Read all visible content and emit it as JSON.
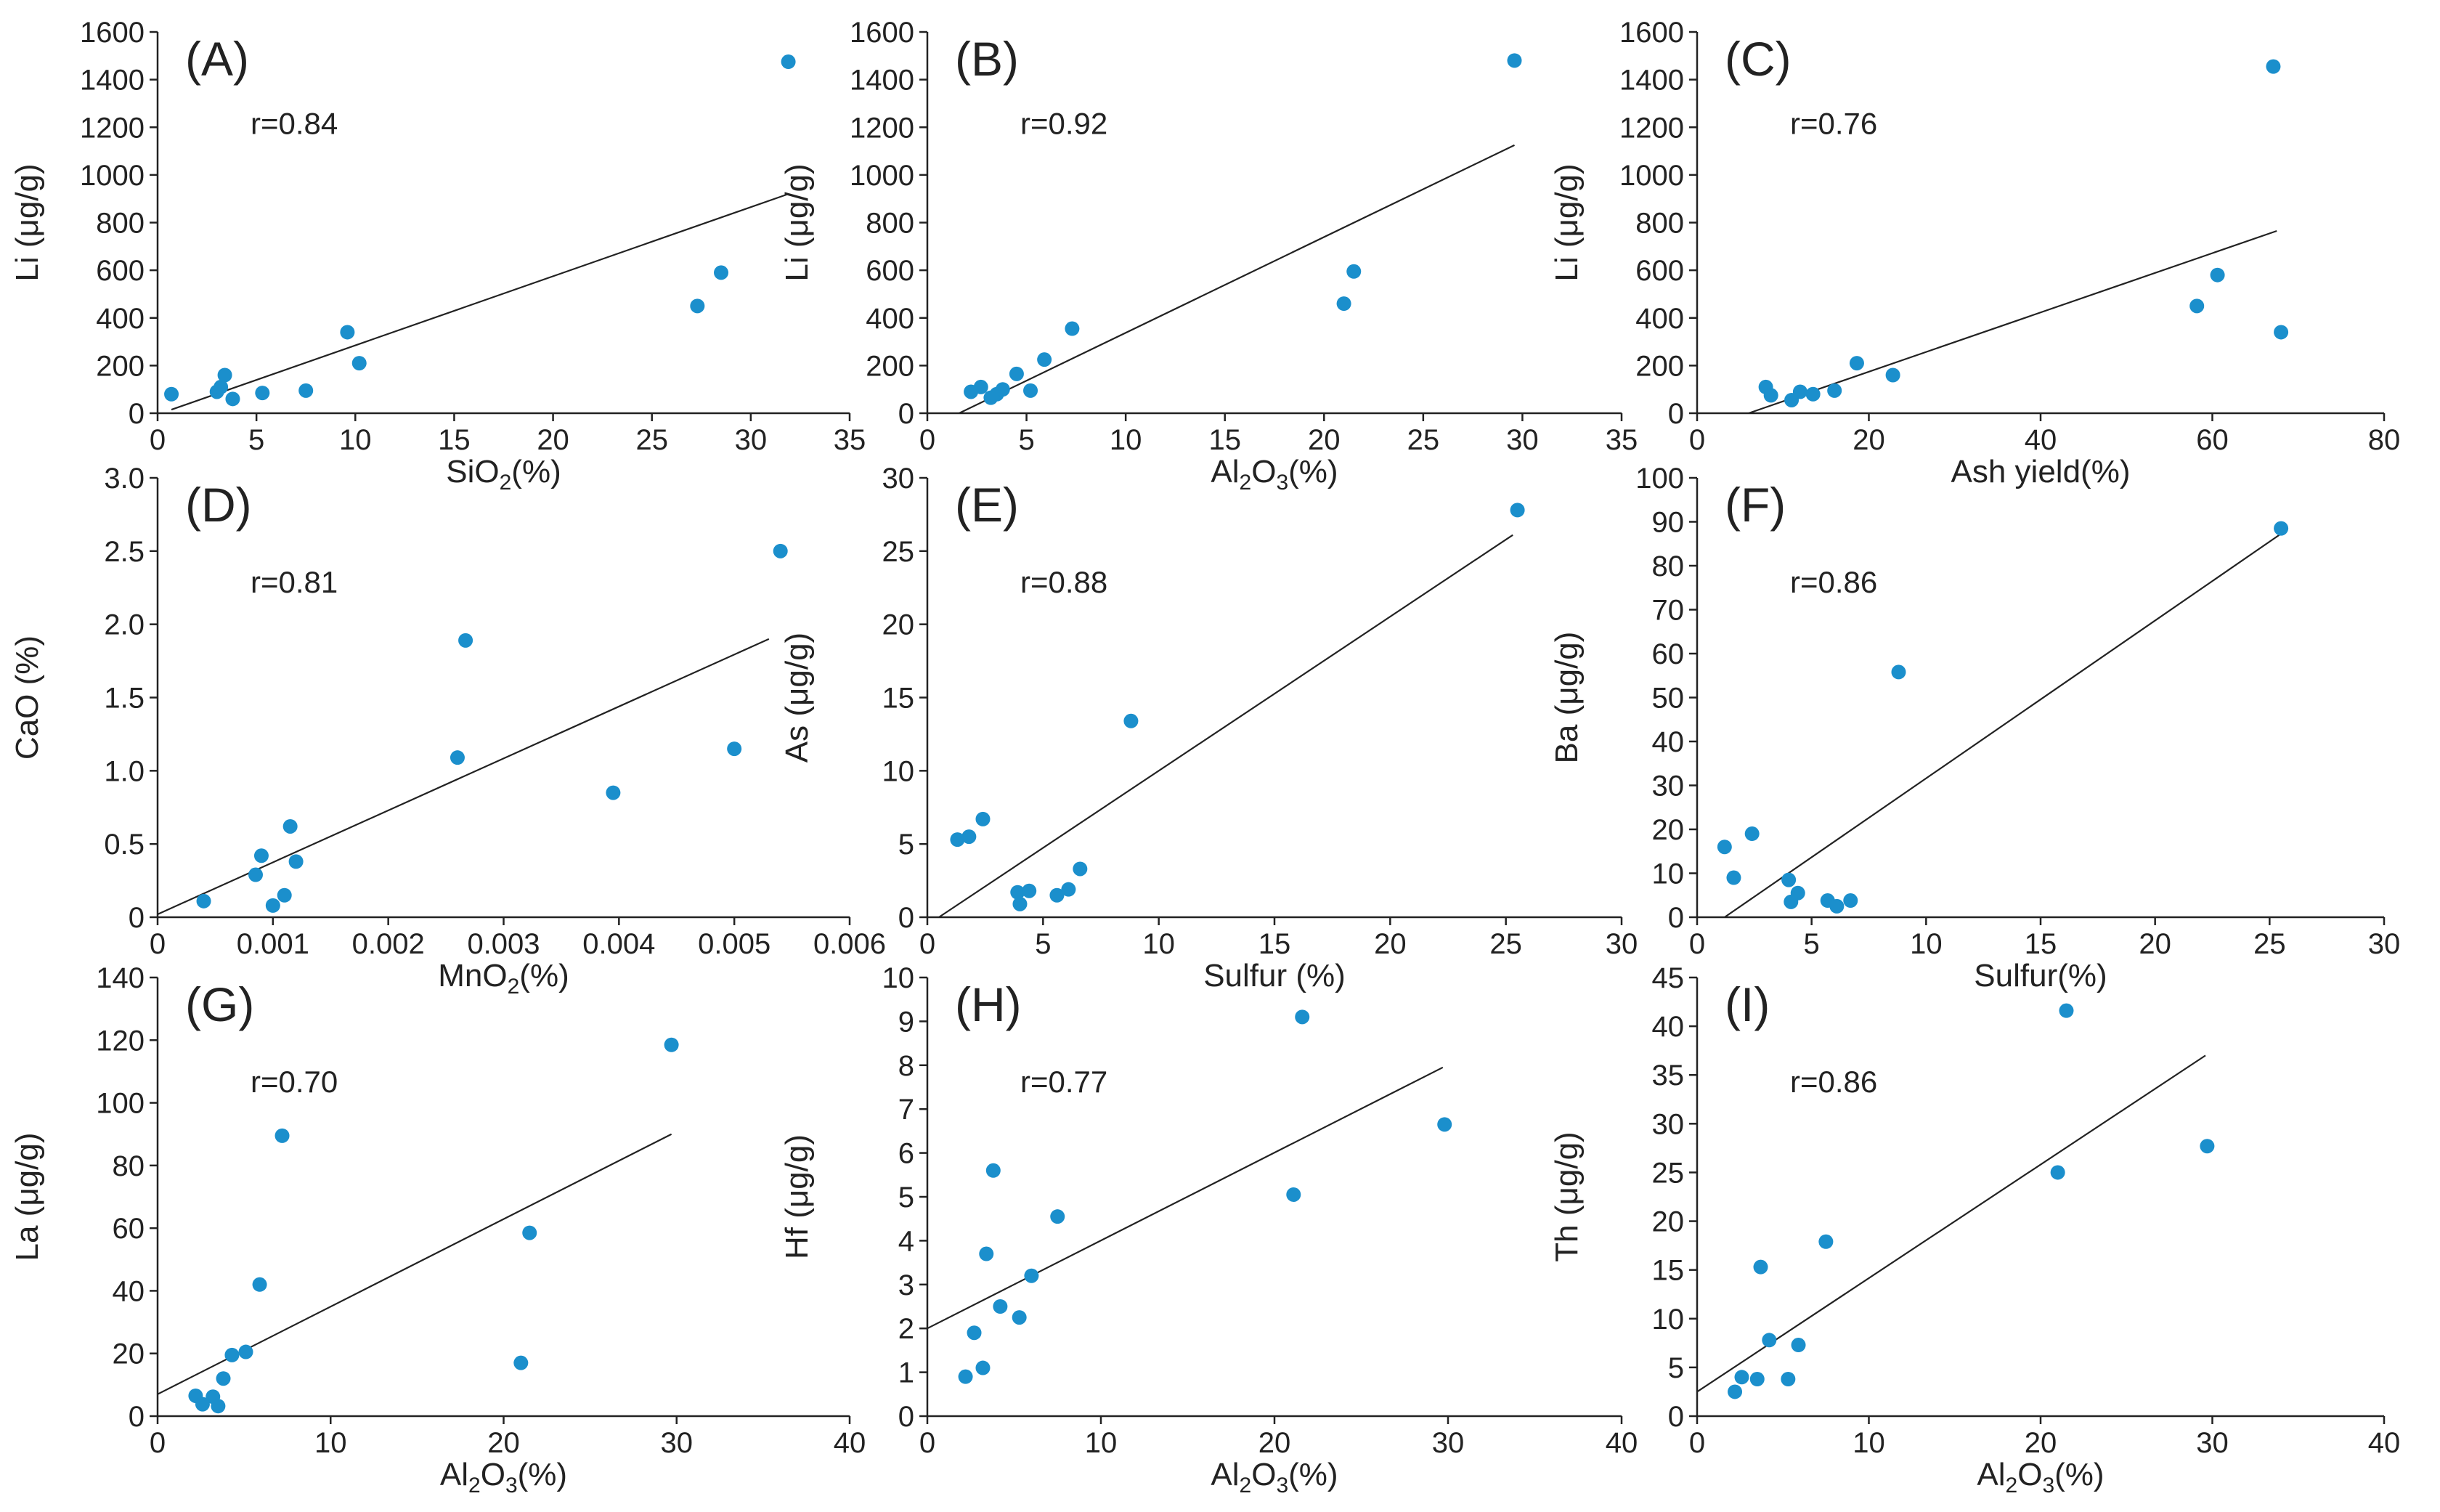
{
  "chart_data": [
    {
      "id": "A",
      "type": "scatter",
      "panel_label": "(A)",
      "r_text": "r=0.84",
      "xlabel": {
        "main": "SiO",
        "sub": "2",
        "suffix": "(%)"
      },
      "ylabel": {
        "main": "Li (μg/g)"
      },
      "xlim": [
        0,
        35
      ],
      "ylim": [
        0,
        1600
      ],
      "xticks": [
        0,
        5,
        10,
        15,
        20,
        25,
        30,
        35
      ],
      "yticks": [
        0,
        200,
        400,
        600,
        800,
        1000,
        1200,
        1400,
        1600
      ],
      "xtick_labels": [
        "0",
        "5",
        "10",
        "15",
        "20",
        "25",
        "30",
        "35"
      ],
      "ytick_labels": [
        "0",
        "200",
        "400",
        "600",
        "800",
        "1000",
        "1200",
        "1400",
        "1600"
      ],
      "points": [
        [
          0.7,
          80
        ],
        [
          3.0,
          90
        ],
        [
          3.2,
          110
        ],
        [
          3.4,
          160
        ],
        [
          3.8,
          60
        ],
        [
          5.3,
          85
        ],
        [
          7.5,
          95
        ],
        [
          9.6,
          340
        ],
        [
          10.2,
          210
        ],
        [
          27.3,
          450
        ],
        [
          28.5,
          590
        ],
        [
          31.9,
          1475
        ]
      ],
      "fit": [
        [
          0.7,
          15
        ],
        [
          31.9,
          920
        ]
      ]
    },
    {
      "id": "B",
      "type": "scatter",
      "panel_label": "(B)",
      "r_text": "r=0.92",
      "xlabel": {
        "main": "Al",
        "sub": "2",
        "main2": "O",
        "sub2": "3",
        "suffix": "(%)"
      },
      "ylabel": {
        "main": "Li (μg/g)"
      },
      "xlim": [
        0,
        35
      ],
      "ylim": [
        0,
        1600
      ],
      "xticks": [
        0,
        5,
        10,
        15,
        20,
        25,
        30,
        35
      ],
      "yticks": [
        0,
        200,
        400,
        600,
        800,
        1000,
        1200,
        1400,
        1600
      ],
      "xtick_labels": [
        "0",
        "5",
        "10",
        "15",
        "20",
        "25",
        "30",
        "35"
      ],
      "ytick_labels": [
        "0",
        "200",
        "400",
        "600",
        "800",
        "1000",
        "1200",
        "1400",
        "1600"
      ],
      "points": [
        [
          2.2,
          90
        ],
        [
          2.7,
          110
        ],
        [
          3.2,
          65
        ],
        [
          3.5,
          80
        ],
        [
          3.8,
          100
        ],
        [
          4.5,
          165
        ],
        [
          5.2,
          95
        ],
        [
          5.9,
          225
        ],
        [
          7.3,
          355
        ],
        [
          21.0,
          460
        ],
        [
          21.5,
          595
        ],
        [
          29.6,
          1480
        ]
      ],
      "fit": [
        [
          1.6,
          0
        ],
        [
          29.6,
          1125
        ]
      ]
    },
    {
      "id": "C",
      "type": "scatter",
      "panel_label": "(C)",
      "r_text": "r=0.76",
      "xlabel": {
        "main": "Ash yield",
        "suffix": "(%)"
      },
      "ylabel": {
        "main": "Li (μg/g)"
      },
      "xlim": [
        0,
        80
      ],
      "ylim": [
        0,
        1600
      ],
      "xticks": [
        0,
        20,
        40,
        60,
        80
      ],
      "yticks": [
        0,
        200,
        400,
        600,
        800,
        1000,
        1200,
        1400,
        1600
      ],
      "xtick_labels": [
        "0",
        "20",
        "40",
        "60",
        "80"
      ],
      "ytick_labels": [
        "0",
        "200",
        "400",
        "600",
        "800",
        "1000",
        "1200",
        "1400",
        "1600"
      ],
      "points": [
        [
          8.0,
          110
        ],
        [
          8.6,
          75
        ],
        [
          11.0,
          55
        ],
        [
          12.0,
          90
        ],
        [
          13.5,
          80
        ],
        [
          16.0,
          95
        ],
        [
          18.6,
          210
        ],
        [
          22.8,
          160
        ],
        [
          58.2,
          450
        ],
        [
          60.6,
          580
        ],
        [
          67.1,
          1455
        ],
        [
          68.0,
          340
        ]
      ],
      "fit": [
        [
          6.0,
          0
        ],
        [
          67.5,
          765
        ]
      ]
    },
    {
      "id": "D",
      "type": "scatter",
      "panel_label": "(D)",
      "r_text": "r=0.81",
      "xlabel": {
        "main": "MnO",
        "sub": "2",
        "suffix": "(%)"
      },
      "ylabel": {
        "main": "CaO (%)"
      },
      "xlim": [
        0,
        0.006
      ],
      "ylim": [
        0,
        3.0
      ],
      "xticks": [
        0,
        0.001,
        0.002,
        0.003,
        0.004,
        0.005,
        0.006
      ],
      "yticks": [
        0,
        0.5,
        1.0,
        1.5,
        2.0,
        2.5,
        3.0
      ],
      "xtick_labels": [
        "0",
        "0.001",
        "0.002",
        "0.003",
        "0.004",
        "0.005",
        "0.006"
      ],
      "ytick_labels": [
        "0",
        "0.5",
        "1.0",
        "1.5",
        "2.0",
        "2.5",
        "3.0"
      ],
      "points": [
        [
          0.0004,
          0.11
        ],
        [
          0.00085,
          0.29
        ],
        [
          0.0009,
          0.42
        ],
        [
          0.001,
          0.08
        ],
        [
          0.0011,
          0.15
        ],
        [
          0.00115,
          0.62
        ],
        [
          0.0012,
          0.38
        ],
        [
          0.0026,
          1.09
        ],
        [
          0.00267,
          1.89
        ],
        [
          0.00395,
          0.85
        ],
        [
          0.005,
          1.15
        ],
        [
          0.0054,
          2.5
        ]
      ],
      "fit": [
        [
          0.0,
          0.02
        ],
        [
          0.0053,
          1.9
        ]
      ]
    },
    {
      "id": "E",
      "type": "scatter",
      "panel_label": "(E)",
      "r_text": "r=0.88",
      "xlabel": {
        "main": "Sulfur",
        "suffix": " (%)"
      },
      "ylabel": {
        "main": "As (μg/g)"
      },
      "xlim": [
        0,
        30
      ],
      "ylim": [
        0,
        30
      ],
      "xticks": [
        0,
        5,
        10,
        15,
        20,
        25,
        30
      ],
      "yticks": [
        0,
        5,
        10,
        15,
        20,
        25,
        30
      ],
      "xtick_labels": [
        "0",
        "5",
        "10",
        "15",
        "20",
        "25",
        "30"
      ],
      "ytick_labels": [
        "0",
        "5",
        "10",
        "15",
        "20",
        "25",
        "30"
      ],
      "points": [
        [
          1.3,
          5.3
        ],
        [
          1.8,
          5.5
        ],
        [
          2.4,
          6.7
        ],
        [
          3.9,
          1.7
        ],
        [
          4.0,
          0.9
        ],
        [
          4.4,
          1.8
        ],
        [
          5.6,
          1.5
        ],
        [
          6.1,
          1.9
        ],
        [
          6.6,
          3.3
        ],
        [
          8.8,
          13.4
        ],
        [
          25.5,
          27.8
        ]
      ],
      "fit": [
        [
          0.5,
          0.0
        ],
        [
          25.3,
          26.1
        ]
      ]
    },
    {
      "id": "F",
      "type": "scatter",
      "panel_label": "(F)",
      "r_text": "r=0.86",
      "xlabel": {
        "main": "Sulfur",
        "suffix": "(%)"
      },
      "ylabel": {
        "main": "Ba (μg/g)"
      },
      "xlim": [
        0,
        30
      ],
      "ylim": [
        0,
        100
      ],
      "xticks": [
        0,
        5,
        10,
        15,
        20,
        25,
        30
      ],
      "yticks": [
        0,
        10,
        20,
        30,
        40,
        50,
        60,
        70,
        80,
        90,
        100
      ],
      "xtick_labels": [
        "0",
        "5",
        "10",
        "15",
        "20",
        "25",
        "30"
      ],
      "ytick_labels": [
        "0",
        "10",
        "20",
        "30",
        "40",
        "50",
        "60",
        "70",
        "80",
        "90",
        "100"
      ],
      "points": [
        [
          1.2,
          16.0
        ],
        [
          1.6,
          9.0
        ],
        [
          2.4,
          19.0
        ],
        [
          4.0,
          8.5
        ],
        [
          4.1,
          3.5
        ],
        [
          4.4,
          5.5
        ],
        [
          5.7,
          3.8
        ],
        [
          6.1,
          2.5
        ],
        [
          6.7,
          3.8
        ],
        [
          8.8,
          55.8
        ],
        [
          25.5,
          88.5
        ]
      ],
      "fit": [
        [
          1.2,
          0.0
        ],
        [
          25.7,
          88.0
        ]
      ]
    },
    {
      "id": "G",
      "type": "scatter",
      "panel_label": "(G)",
      "r_text": "r=0.70",
      "xlabel": {
        "main": "Al",
        "sub": "2",
        "main2": "O",
        "sub2": "3",
        "suffix": "(%)"
      },
      "ylabel": {
        "main": "La (μg/g)"
      },
      "xlim": [
        0,
        40
      ],
      "ylim": [
        0,
        140
      ],
      "xticks": [
        0,
        10,
        20,
        30,
        40
      ],
      "yticks": [
        0,
        20,
        40,
        60,
        80,
        100,
        120,
        140
      ],
      "xtick_labels": [
        "0",
        "10",
        "20",
        "30",
        "40"
      ],
      "ytick_labels": [
        "0",
        "20",
        "40",
        "60",
        "80",
        "100",
        "120",
        "140"
      ],
      "points": [
        [
          2.2,
          6.5
        ],
        [
          2.6,
          3.8
        ],
        [
          3.2,
          6.2
        ],
        [
          3.5,
          3.2
        ],
        [
          3.8,
          12.0
        ],
        [
          4.3,
          19.5
        ],
        [
          5.1,
          20.5
        ],
        [
          5.9,
          42.0
        ],
        [
          7.2,
          89.5
        ],
        [
          21.0,
          17.0
        ],
        [
          21.5,
          58.5
        ],
        [
          29.7,
          118.5
        ]
      ],
      "fit": [
        [
          0.0,
          7.0
        ],
        [
          29.7,
          90.0
        ]
      ]
    },
    {
      "id": "H",
      "type": "scatter",
      "panel_label": "(H)",
      "r_text": "r=0.77",
      "xlabel": {
        "main": "Al",
        "sub": "2",
        "main2": "O",
        "sub2": "3",
        "suffix": "(%)"
      },
      "ylabel": {
        "main": "Hf (μg/g)"
      },
      "xlim": [
        0,
        40
      ],
      "ylim": [
        0,
        10
      ],
      "xticks": [
        0,
        10,
        20,
        30,
        40
      ],
      "yticks": [
        0,
        1,
        2,
        3,
        4,
        5,
        6,
        7,
        8,
        9,
        10
      ],
      "xtick_labels": [
        "0",
        "10",
        "20",
        "30",
        "40"
      ],
      "ytick_labels": [
        "0",
        "1",
        "2",
        "3",
        "4",
        "5",
        "6",
        "7",
        "8",
        "9",
        "10"
      ],
      "points": [
        [
          2.2,
          0.9
        ],
        [
          2.7,
          1.9
        ],
        [
          3.2,
          1.1
        ],
        [
          3.4,
          3.7
        ],
        [
          3.8,
          5.6
        ],
        [
          4.2,
          2.5
        ],
        [
          5.3,
          2.25
        ],
        [
          6.0,
          3.2
        ],
        [
          7.5,
          4.55
        ],
        [
          21.1,
          5.05
        ],
        [
          21.6,
          9.1
        ],
        [
          29.8,
          6.65
        ]
      ],
      "fit": [
        [
          0.0,
          2.0
        ],
        [
          29.7,
          7.95
        ]
      ]
    },
    {
      "id": "I",
      "type": "scatter",
      "panel_label": "(I)",
      "r_text": "r=0.86",
      "xlabel": {
        "main": "Al",
        "sub": "2",
        "main2": "O",
        "sub2": "3",
        "suffix": "(%)"
      },
      "ylabel": {
        "main": "Th (μg/g)"
      },
      "xlim": [
        0,
        40
      ],
      "ylim": [
        0,
        45
      ],
      "xticks": [
        0,
        10,
        20,
        30,
        40
      ],
      "yticks": [
        0,
        5,
        10,
        15,
        20,
        25,
        30,
        35,
        40,
        45
      ],
      "xtick_labels": [
        "0",
        "10",
        "20",
        "30",
        "40"
      ],
      "ytick_labels": [
        "0",
        "5",
        "10",
        "15",
        "20",
        "25",
        "30",
        "35",
        "40",
        "45"
      ],
      "points": [
        [
          2.2,
          2.5
        ],
        [
          2.6,
          4.0
        ],
        [
          3.5,
          3.8
        ],
        [
          3.7,
          15.3
        ],
        [
          4.2,
          7.8
        ],
        [
          5.3,
          3.8
        ],
        [
          5.9,
          7.3
        ],
        [
          7.5,
          17.9
        ],
        [
          21.0,
          25.0
        ],
        [
          21.5,
          41.6
        ],
        [
          29.7,
          27.7
        ]
      ],
      "fit": [
        [
          0.0,
          2.5
        ],
        [
          29.6,
          37.0
        ]
      ]
    }
  ],
  "style": {
    "point_color": "#1b8fcc",
    "line_color": "#222222",
    "axis_color": "#222222"
  }
}
